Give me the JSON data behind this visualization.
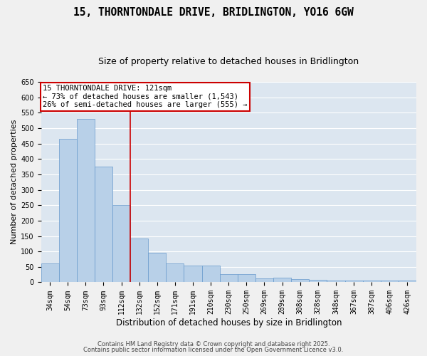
{
  "title": "15, THORNTONDALE DRIVE, BRIDLINGTON, YO16 6GW",
  "subtitle": "Size of property relative to detached houses in Bridlington",
  "xlabel": "Distribution of detached houses by size in Bridlington",
  "ylabel": "Number of detached properties",
  "categories": [
    "34sqm",
    "54sqm",
    "73sqm",
    "93sqm",
    "112sqm",
    "132sqm",
    "152sqm",
    "171sqm",
    "191sqm",
    "210sqm",
    "230sqm",
    "250sqm",
    "269sqm",
    "289sqm",
    "308sqm",
    "328sqm",
    "348sqm",
    "367sqm",
    "387sqm",
    "406sqm",
    "426sqm"
  ],
  "values": [
    62,
    465,
    530,
    375,
    250,
    143,
    95,
    62,
    55,
    55,
    27,
    27,
    12,
    15,
    10,
    7,
    5,
    5,
    5,
    5,
    5
  ],
  "bar_color": "#b8d0e8",
  "bar_edgecolor": "#6699cc",
  "vline_x_index": 5,
  "vline_color": "#cc0000",
  "annotation_line1": "15 THORNTONDALE DRIVE: 121sqm",
  "annotation_line2": "← 73% of detached houses are smaller (1,543)",
  "annotation_line3": "26% of semi-detached houses are larger (555) →",
  "annotation_box_color": "#ffffff",
  "annotation_box_edgecolor": "#cc0000",
  "ylim": [
    0,
    650
  ],
  "yticks": [
    0,
    50,
    100,
    150,
    200,
    250,
    300,
    350,
    400,
    450,
    500,
    550,
    600,
    650
  ],
  "plot_bg_color": "#dce6f0",
  "grid_color": "#ffffff",
  "fig_bg_color": "#f0f0f0",
  "footer_line1": "Contains HM Land Registry data © Crown copyright and database right 2025.",
  "footer_line2": "Contains public sector information licensed under the Open Government Licence v3.0.",
  "title_fontsize": 10.5,
  "subtitle_fontsize": 9,
  "xlabel_fontsize": 8.5,
  "ylabel_fontsize": 8,
  "tick_fontsize": 7,
  "annotation_fontsize": 7.5,
  "footer_fontsize": 6
}
